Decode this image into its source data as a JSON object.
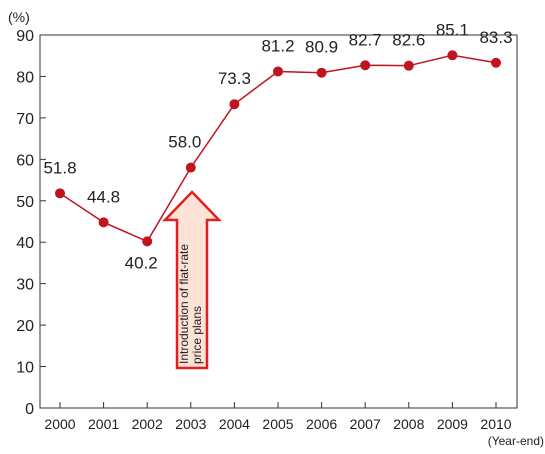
{
  "chart_data": {
    "type": "line",
    "title": "",
    "ylabel": "(%)",
    "xlabel": "(Year-end)",
    "categories": [
      "2000",
      "2001",
      "2002",
      "2003",
      "2004",
      "2005",
      "2006",
      "2007",
      "2008",
      "2009",
      "2010"
    ],
    "series": [
      {
        "values": [
          51.8,
          44.8,
          40.2,
          58.0,
          73.3,
          81.2,
          80.9,
          82.7,
          82.6,
          85.1,
          83.3
        ],
        "labels": [
          "51.8",
          "44.8",
          "40.2",
          "58.0",
          "73.3",
          "81.2",
          "80.9",
          "82.7",
          "82.6",
          "85.1",
          "83.3"
        ],
        "color": "#c0141e"
      }
    ],
    "ylim": [
      0,
      90
    ],
    "yticks": [
      "0",
      "10",
      "20",
      "30",
      "40",
      "50",
      "60",
      "70",
      "80",
      "90"
    ],
    "grid": false,
    "legend": "none",
    "annotation": {
      "line1": "Introduction of flat-rate",
      "line2": "price plans",
      "arrow_fill": "#fde3d6",
      "arrow_stroke": "#e02020"
    }
  }
}
